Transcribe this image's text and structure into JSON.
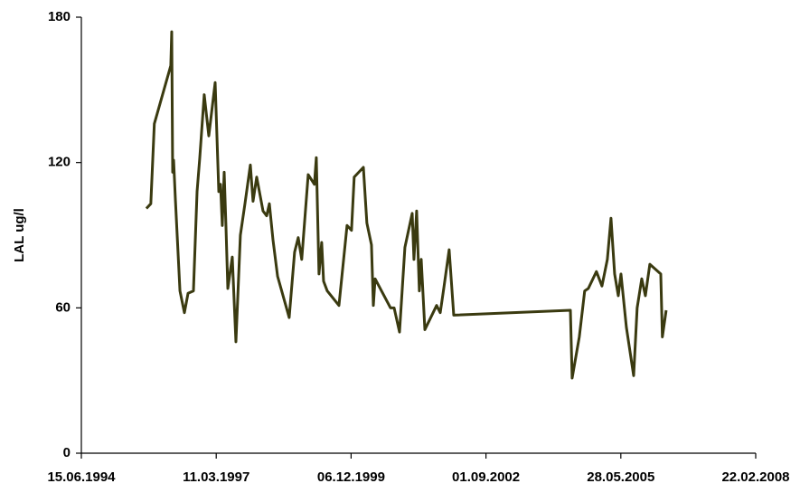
{
  "chart_data": {
    "type": "line",
    "ylabel": "LAL ug/l",
    "xlim": [
      "15.06.1994",
      "22.02.2008"
    ],
    "xticks": [
      "15.06.1994",
      "11.03.1997",
      "06.12.1999",
      "01.09.2002",
      "28.05.2005",
      "22.02.2008"
    ],
    "ylim": [
      0,
      180
    ],
    "yticks": [
      0,
      60,
      120,
      180
    ],
    "grid": false,
    "series": [
      {
        "color": "#3a3a10",
        "x": [
          "10.10.1995",
          "12.11.1995",
          "08.12.1995",
          "08.04.1996",
          "15.04.1996",
          "22.04.1996",
          "29.04.1996",
          "12.05.1996",
          "15.06.1996",
          "18.07.1996",
          "14.08.1996",
          "23.09.1996",
          "20.10.1996",
          "09.11.1996",
          "12.12.1996",
          "15.01.1997",
          "03.03.1997",
          "30.03.1997",
          "12.04.1997",
          "25.04.1997",
          "09.05.1997",
          "22.05.1997",
          "05.06.1997",
          "08.07.1997",
          "04.08.1997",
          "06.09.1997",
          "10.10.1997",
          "19.11.1997",
          "09.12.1997",
          "05.01.1998",
          "21.02.1998",
          "20.03.1998",
          "09.04.1998",
          "06.05.1998",
          "09.06.1998",
          "03.09.1998",
          "13.10.1998",
          "09.11.1998",
          "05.12.1998",
          "22.01.1999",
          "09.03.1999",
          "23.03.1999",
          "12.04.1999",
          "02.05.1999",
          "16.05.1999",
          "12.06.1999",
          "07.09.1999",
          "06.11.1999",
          "09.12.1999",
          "29.12.1999",
          "06.03.2000",
          "01.04.2000",
          "05.05.2000",
          "19.05.2000",
          "01.06.2000",
          "23.09.2000",
          "20.10.2000",
          "29.11.2000",
          "08.01.2001",
          "03.03.2001",
          "16.03.2001",
          "05.04.2001",
          "25.04.2001",
          "09.05.2001",
          "05.06.2001",
          "31.08.2001",
          "27.09.2001",
          "23.10.2001",
          "02.12.2001",
          "05.01.2002",
          "19.05.2004",
          "01.06.2004",
          "24.07.2004",
          "02.09.2004",
          "29.09.2004",
          "28.11.2004",
          "08.01.2005",
          "17.02.2005",
          "16.03.2005",
          "12.04.2005",
          "09.05.2005",
          "29.05.2005",
          "08.07.2005",
          "31.08.2005",
          "26.09.2005",
          "30.10.2005",
          "26.11.2005",
          "29.12.2005",
          "20.03.2006",
          "01.04.2006",
          "29.04.2006"
        ],
        "values": [
          101,
          103,
          136,
          160,
          174,
          116,
          121,
          105,
          67,
          58,
          66,
          67,
          108,
          122,
          148,
          131,
          153,
          108,
          111,
          94,
          116,
          94,
          68,
          81,
          46,
          90,
          103,
          119,
          104,
          114,
          100,
          98,
          103,
          88,
          73,
          56,
          83,
          89,
          80,
          115,
          111,
          122,
          74,
          87,
          71,
          67,
          61,
          94,
          92,
          114,
          118,
          95,
          86,
          61,
          72,
          60,
          60,
          50,
          85,
          99,
          80,
          100,
          67,
          80,
          51,
          61,
          58,
          68,
          84,
          57,
          59,
          31,
          48,
          67,
          68,
          75,
          69,
          80,
          97,
          74,
          65,
          74,
          52,
          32,
          60,
          72,
          65,
          78,
          74,
          48,
          59
        ]
      }
    ]
  }
}
